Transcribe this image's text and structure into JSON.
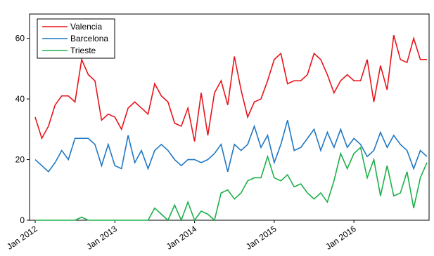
{
  "chart_data": {
    "type": "line",
    "title": "",
    "xlabel": "",
    "ylabel": "",
    "x_start": "2012-01",
    "x_tick_labels": [
      "Jan 2012",
      "Jan 2013",
      "Jan 2014",
      "Jan 2015",
      "Jan 2016"
    ],
    "x_tick_months": [
      "2012-01",
      "2013-01",
      "2014-01",
      "2015-01",
      "2016-01"
    ],
    "y_ticks": [
      0,
      20,
      40,
      60
    ],
    "ylim": [
      0,
      68
    ],
    "grid": false,
    "legend_position": "top-left",
    "series": [
      {
        "name": "Valencia",
        "color": "#e8141b",
        "values": [
          34,
          27,
          31,
          38,
          41,
          41,
          39,
          53,
          48,
          46,
          33,
          35,
          34,
          30,
          37,
          39,
          37,
          35,
          45,
          41,
          39,
          32,
          31,
          37,
          26,
          42,
          28,
          42,
          46,
          38,
          54,
          43,
          34,
          39,
          40,
          46,
          53,
          55,
          45,
          46,
          46,
          48,
          55,
          53,
          48,
          42,
          46,
          48,
          46,
          46,
          53,
          39,
          51,
          43,
          61,
          53,
          52,
          60,
          53,
          53
        ]
      },
      {
        "name": "Barcelona",
        "color": "#1f77c4",
        "values": [
          20,
          18,
          16,
          19,
          23,
          20,
          27,
          27,
          27,
          25,
          18,
          25,
          18,
          17,
          28,
          19,
          23,
          17,
          23,
          25,
          23,
          20,
          18,
          20,
          20,
          19,
          20,
          22,
          25,
          16,
          25,
          23,
          25,
          31,
          24,
          28,
          19,
          25,
          33,
          23,
          24,
          27,
          30,
          23,
          29,
          24,
          30,
          24,
          27,
          25,
          21,
          23,
          29,
          24,
          28,
          25,
          23,
          17,
          23,
          21
        ]
      },
      {
        "name": "Trieste",
        "color": "#1db04a",
        "values": [
          0,
          0,
          0,
          0,
          0,
          0,
          0,
          1,
          0,
          0,
          0,
          0,
          0,
          0,
          0,
          0,
          0,
          0,
          4,
          2,
          0,
          5,
          0,
          6,
          0,
          3,
          2,
          0,
          9,
          10,
          7,
          9,
          13,
          14,
          14,
          21,
          14,
          13,
          15,
          11,
          12,
          9,
          7,
          9,
          6,
          13,
          22,
          17,
          22,
          24,
          14,
          20,
          8,
          18,
          8,
          9,
          16,
          4,
          14,
          19
        ]
      }
    ]
  }
}
